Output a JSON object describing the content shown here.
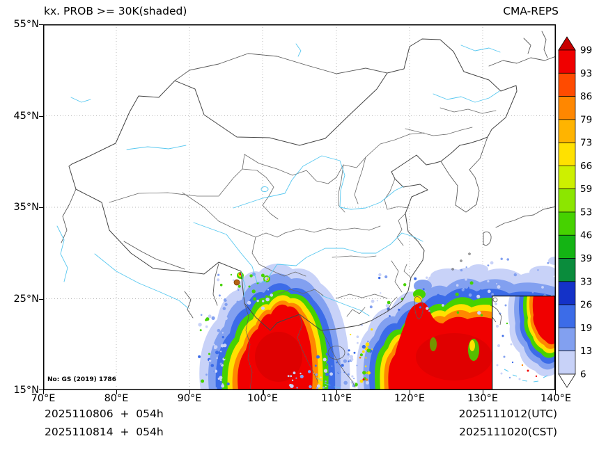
{
  "header": {
    "title": "kx. PROB >= 30K(shaded)",
    "model": "CMA-REPS"
  },
  "axes": {
    "x_ticks": [
      "70°E",
      "80°E",
      "90°E",
      "100°E",
      "110°E",
      "120°E",
      "130°E",
      "140°E"
    ],
    "y_ticks": [
      "55°N",
      "45°N",
      "35°N",
      "25°N",
      "15°N"
    ]
  },
  "colorbar": {
    "levels": [
      "99",
      "93",
      "86",
      "79",
      "73",
      "66",
      "59",
      "53",
      "46",
      "39",
      "33",
      "26",
      "19",
      "13",
      "6"
    ],
    "cell_colors": [
      "#f00000",
      "#ff4b00",
      "#ff8700",
      "#ffb400",
      "#ffe100",
      "#cdf000",
      "#8ce600",
      "#46d200",
      "#14b414",
      "#0a8c3c",
      "#1432c8",
      "#3c6ce8",
      "#82a0f0",
      "#c8d2f8"
    ],
    "triangle_top_color": "#c80000",
    "triangle_bottom_color": "#ffffff"
  },
  "map": {
    "watermark": "No: GS (2019) 1786",
    "border_color": "#5a5a5a",
    "river_color": "#58c8f0",
    "grid_color": "#b4b4b4"
  },
  "footer": {
    "line1_left": "2025110806  +  054h",
    "line2_left": "2025110814  +  054h",
    "line1_right": "2025111012(UTC)",
    "line2_right": "2025111020(CST)"
  }
}
